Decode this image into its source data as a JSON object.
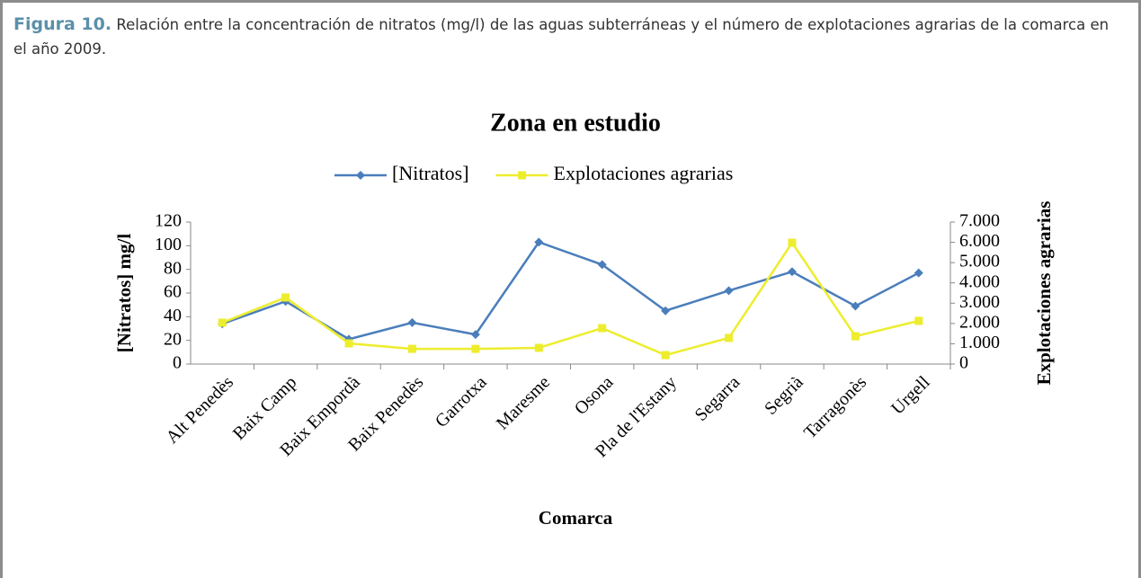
{
  "caption": {
    "label": "Figura 10.",
    "text": "Relación entre la concentración de nitratos (mg/l) de las aguas subterráneas y el número de explotaciones agrarias de la comarca en el año 2009."
  },
  "chart_data": {
    "type": "line",
    "title": "Zona en estudio",
    "x_label": "Comarca",
    "y_label": "[Nitratos] mg/l",
    "y2_label": "Explotaciones agrarias",
    "categories": [
      "Alt Penedès",
      "Baix Camp",
      "Baix Empordà",
      "Baix Penedès",
      "Garrotxa",
      "Maresme",
      "Osona",
      "Pla de l'Estany",
      "Segarra",
      "Segrià",
      "Tarragonès",
      "Urgell"
    ],
    "series": [
      {
        "name": "[Nitratos]",
        "color": "#4a7ebb",
        "marker": "diamond",
        "values": [
          34,
          53,
          21,
          35,
          25,
          103,
          84,
          45,
          62,
          78,
          49,
          77
        ]
      },
      {
        "name": "Explotaciones agrarias",
        "color": "#eded2e",
        "marker": "square",
        "axis": "y2",
        "values": [
          2040,
          3280,
          1020,
          750,
          750,
          800,
          1770,
          440,
          1290,
          5980,
          1370,
          2130
        ]
      }
    ],
    "ylim": [
      0,
      120
    ],
    "yticks": [
      0,
      20,
      40,
      60,
      80,
      100,
      120
    ],
    "y2lim": [
      0,
      7000
    ],
    "y2ticks": [
      0,
      {
        "value": 1000,
        "label": "1.000"
      },
      {
        "value": 2000,
        "label": "2.000"
      },
      {
        "value": 3000,
        "label": "3.000"
      },
      {
        "value": 4000,
        "label": "4.000"
      },
      {
        "value": 5000,
        "label": "5.000"
      },
      {
        "value": 6000,
        "label": "6.000"
      },
      {
        "value": 7000,
        "label": "7.000"
      }
    ],
    "legend": "top"
  }
}
